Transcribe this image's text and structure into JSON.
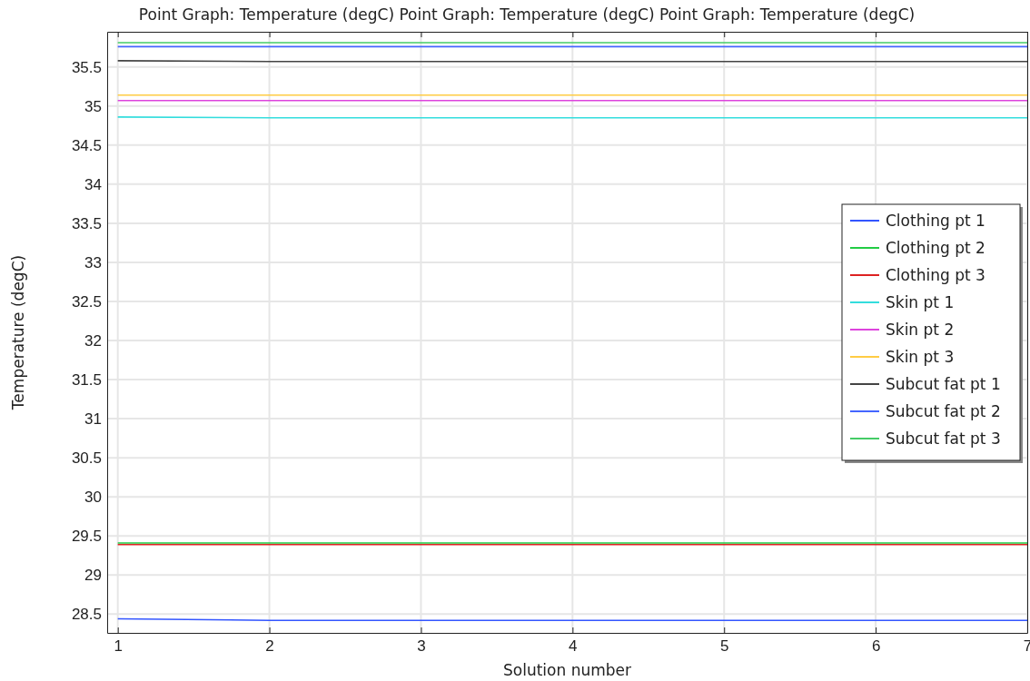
{
  "chart_data": {
    "type": "line",
    "title": "Point Graph: Temperature (degC)  Point Graph: Temperature (degC)  Point Graph: Temperature (degC)",
    "xlabel": "Solution number",
    "ylabel": "Temperature (degC)",
    "x": [
      1,
      2,
      3,
      4,
      5,
      6,
      7
    ],
    "xlim": [
      0.93,
      7
    ],
    "xticks": [
      1,
      2,
      3,
      4,
      5,
      6,
      7
    ],
    "ylim": [
      28.26,
      35.95
    ],
    "yticks": [
      28.5,
      29,
      29.5,
      30,
      30.5,
      31,
      31.5,
      32,
      32.5,
      33,
      33.5,
      34,
      34.5,
      35,
      35.5
    ],
    "grid": true,
    "legend": "right",
    "marker": "none",
    "line_style": "solid",
    "series": [
      {
        "name": "Clothing pt 1",
        "color": "#3355ff",
        "values": [
          28.44,
          28.42,
          28.42,
          28.42,
          28.42,
          28.42,
          28.42
        ]
      },
      {
        "name": "Clothing pt 2",
        "color": "#22cc44",
        "values": [
          29.41,
          29.41,
          29.41,
          29.41,
          29.41,
          29.41,
          29.41
        ]
      },
      {
        "name": "Clothing pt 3",
        "color": "#dd2222",
        "values": [
          29.39,
          29.39,
          29.39,
          29.39,
          29.39,
          29.39,
          29.39
        ]
      },
      {
        "name": "Skin pt 1",
        "color": "#33dddd",
        "values": [
          34.86,
          34.85,
          34.85,
          34.85,
          34.85,
          34.85,
          34.85
        ]
      },
      {
        "name": "Skin pt 2",
        "color": "#dd44dd",
        "values": [
          35.07,
          35.07,
          35.07,
          35.07,
          35.07,
          35.07,
          35.07
        ]
      },
      {
        "name": "Skin pt 3",
        "color": "#ffcc44",
        "values": [
          35.14,
          35.14,
          35.14,
          35.14,
          35.14,
          35.14,
          35.14
        ]
      },
      {
        "name": "Subcut fat pt 1",
        "color": "#444444",
        "values": [
          35.58,
          35.57,
          35.57,
          35.57,
          35.57,
          35.57,
          35.57
        ]
      },
      {
        "name": "Subcut fat pt 2",
        "color": "#4466ff",
        "values": [
          35.76,
          35.76,
          35.76,
          35.76,
          35.76,
          35.76,
          35.76
        ]
      },
      {
        "name": "Subcut fat pt 3",
        "color": "#44cc66",
        "values": [
          35.81,
          35.81,
          35.81,
          35.81,
          35.81,
          35.81,
          35.81
        ]
      }
    ]
  }
}
